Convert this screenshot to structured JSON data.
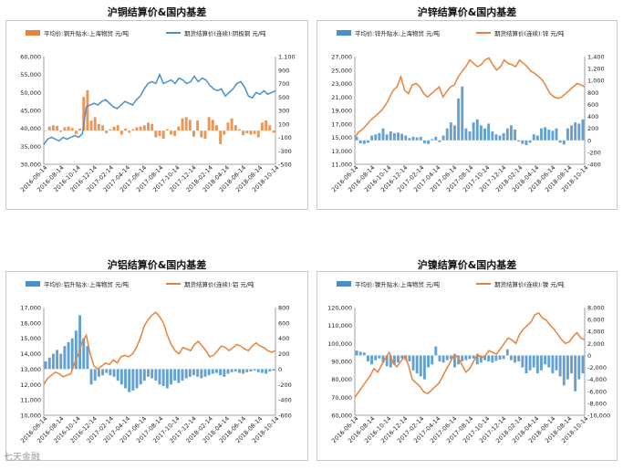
{
  "chart_data": [
    {
      "type": "bar+line",
      "title": "沪铜结算价&国内基差",
      "legend": [
        "平均价:铜升贴水:上海物贸 元/吨",
        "期货结算价(连续):阴极铜 元/吨"
      ],
      "x_ticks": [
        "2016-06-14",
        "2016-08-14",
        "2016-10-14",
        "2016-12-14",
        "2017-02-14",
        "2017-04-14",
        "2017-06-14",
        "2017-08-14",
        "2017-10-14",
        "2017-12-14",
        "2018-02-14",
        "2018-04-14",
        "2018-06-14",
        "2018-08-14",
        "2018-10-14"
      ],
      "left_axis": {
        "ticks": [
          "30,000",
          "35,000",
          "40,000",
          "45,000",
          "50,000",
          "55,000",
          "60,000"
        ],
        "min": 30000,
        "max": 60000
      },
      "right_axis": {
        "ticks": [
          "-500",
          "-300",
          "-100",
          "100",
          "300",
          "500",
          "700",
          "900",
          "1,100"
        ],
        "min": -500,
        "max": 1100
      },
      "line": {
        "name": "期货结算价(连续):阴极铜 元/吨",
        "color": "#4a90c8",
        "axis": "left",
        "values": [
          35500,
          37000,
          37500,
          37000,
          36500,
          37500,
          37000,
          37500,
          38000,
          37500,
          38500,
          46000,
          46500,
          47000,
          46500,
          47500,
          48000,
          47000,
          46000,
          45500,
          46500,
          47500,
          47000,
          46500,
          48000,
          49000,
          51000,
          52500,
          53000,
          52500,
          55000,
          52500,
          53000,
          53500,
          52500,
          54000,
          53500,
          52500,
          53000,
          54500,
          53000,
          54000,
          53500,
          52000,
          51000,
          50500,
          51000,
          49000,
          50000,
          51000,
          52500,
          53000,
          51500,
          49000,
          48500,
          50000,
          49500,
          50500,
          49500,
          50000,
          50500
        ]
      },
      "bars": {
        "name": "平均价:铜升贴水:上海物贸 元/吨",
        "color": "#e8823a",
        "axis": "right",
        "values": [
          0,
          60,
          80,
          70,
          -20,
          50,
          60,
          40,
          -50,
          30,
          500,
          600,
          150,
          200,
          100,
          80,
          -40,
          20,
          60,
          80,
          -60,
          30,
          -30,
          20,
          50,
          60,
          80,
          120,
          100,
          -100,
          -80,
          -120,
          20,
          -60,
          -80,
          60,
          180,
          200,
          160,
          -90,
          150,
          -100,
          -120,
          200,
          160,
          80,
          -200,
          -60,
          120,
          180,
          80,
          20,
          -70,
          -40,
          -60,
          -50,
          -100,
          120,
          150,
          80,
          -30
        ]
      }
    },
    {
      "type": "bar+line",
      "title": "沪锌结算价&国内基差",
      "legend": [
        "平均价:锌升贴水:上海物贸 元/吨",
        "期货结算价(连续):锌 元/吨"
      ],
      "x_ticks": [
        "2016-06-14",
        "2016-08-14",
        "2016-10-14",
        "2016-12-14",
        "2017-02-14",
        "2017-04-14",
        "2017-06-14",
        "2017-08-14",
        "2017-10-14",
        "2017-12-14",
        "2018-02-14",
        "2018-04-14",
        "2018-06-14",
        "2018-08-14",
        "2018-10-14"
      ],
      "left_axis": {
        "ticks": [
          "11,000",
          "13,000",
          "15,000",
          "17,000",
          "19,000",
          "21,000",
          "23,000",
          "25,000",
          "27,000"
        ],
        "min": 11000,
        "max": 27000
      },
      "right_axis": {
        "ticks": [
          "-400",
          "-200",
          "0",
          "200",
          "400",
          "600",
          "800",
          "1,000",
          "1,200",
          "1,400"
        ],
        "min": -400,
        "max": 1400
      },
      "line": {
        "name": "期货结算价(连续):锌 元/吨",
        "color": "#e8823a",
        "axis": "left",
        "values": [
          15000,
          15800,
          16200,
          16800,
          17500,
          18000,
          18500,
          19000,
          19800,
          20800,
          22000,
          22500,
          24000,
          22000,
          21500,
          22800,
          23000,
          22500,
          21500,
          21000,
          21500,
          22000,
          22500,
          21000,
          21800,
          22500,
          22800,
          24000,
          24800,
          25500,
          26500,
          26000,
          25500,
          25800,
          26500,
          26800,
          25800,
          25000,
          25500,
          26500,
          26000,
          25800,
          25500,
          26500,
          26000,
          25500,
          24800,
          24500,
          24000,
          23500,
          22500,
          21500,
          21000,
          20800,
          21000,
          21500,
          22000,
          22500,
          23000,
          22800,
          22500
        ]
      },
      "bars": {
        "name": "平均价:锌升贴水:上海物贸 元/吨",
        "color": "#4a90c8",
        "axis": "right",
        "values": [
          60,
          -50,
          -60,
          -40,
          80,
          100,
          120,
          200,
          100,
          150,
          120,
          130,
          110,
          80,
          40,
          60,
          50,
          60,
          -50,
          -60,
          20,
          60,
          -30,
          80,
          200,
          300,
          250,
          700,
          900,
          200,
          150,
          300,
          350,
          250,
          200,
          280,
          150,
          100,
          80,
          120,
          200,
          250,
          180,
          -20,
          -60,
          -80,
          -40,
          100,
          80,
          200,
          220,
          180,
          160,
          200,
          -40,
          -70,
          200,
          250,
          300,
          280,
          350
        ]
      }
    },
    {
      "type": "bar+line",
      "title": "沪铝结算价&国内基差",
      "legend": [
        "平均价:铝升贴水:上海物贸 元/吨",
        "期货结算价(连续):铝 元/吨"
      ],
      "x_ticks": [
        "2016-06-14",
        "2016-08-14",
        "2016-10-14",
        "2016-12-14",
        "2017-02-14",
        "2017-04-14",
        "2017-06-14",
        "2017-08-14",
        "2017-10-14",
        "2017-12-14",
        "2018-02-14",
        "2018-04-14",
        "2018-06-14",
        "2018-08-14",
        "2018-10-14"
      ],
      "left_axis": {
        "ticks": [
          "10,000",
          "11,000",
          "12,000",
          "13,000",
          "14,000",
          "15,000",
          "16,000",
          "17,000"
        ],
        "min": 10000,
        "max": 17000
      },
      "right_axis": {
        "ticks": [
          "-600",
          "-400",
          "-200",
          "0",
          "200",
          "400",
          "600",
          "800"
        ],
        "min": -600,
        "max": 800
      },
      "line": {
        "name": "期货结算价(连续):铝 元/吨",
        "color": "#e8823a",
        "axis": "left",
        "values": [
          12000,
          12400,
          12600,
          12800,
          12700,
          12500,
          12600,
          12700,
          13400,
          14000,
          14800,
          15200,
          14000,
          13200,
          13000,
          13200,
          13400,
          13300,
          13600,
          13400,
          13800,
          13900,
          13800,
          14000,
          14400,
          15000,
          15800,
          16200,
          16500,
          16700,
          16400,
          16000,
          15200,
          14600,
          14200,
          14000,
          14400,
          14300,
          14200,
          14600,
          14800,
          14500,
          14200,
          13800,
          13900,
          14200,
          14500,
          14400,
          14200,
          14400,
          14600,
          14500,
          14300,
          14200,
          14500,
          14700,
          14500,
          14400,
          14200,
          14100,
          14200
        ]
      },
      "bars": {
        "name": "平均价:铝升贴水:上海物贸 元/吨",
        "color": "#4a90c8",
        "axis": "right",
        "values": [
          100,
          150,
          200,
          250,
          200,
          300,
          350,
          400,
          500,
          700,
          400,
          300,
          -200,
          -150,
          -100,
          -80,
          -50,
          -80,
          -100,
          -150,
          -200,
          -250,
          -300,
          -280,
          -250,
          -200,
          -150,
          -100,
          -120,
          -150,
          -200,
          -220,
          -250,
          -200,
          -150,
          -180,
          -150,
          -120,
          -100,
          -80,
          -100,
          -120,
          -100,
          -80,
          -60,
          -50,
          -80,
          -100,
          -60,
          -40,
          -30,
          -50,
          -60,
          -40,
          -30,
          -20,
          -40,
          -50,
          -60,
          -30,
          -20
        ]
      }
    },
    {
      "type": "bar+line",
      "title": "沪镍结算价&国内基差",
      "legend": [
        "平均价:镍升贴水:上海物贸 元/吨",
        "期货结算价(连续):镍 元/吨"
      ],
      "x_ticks": [
        "2016-06-14",
        "2016-08-14",
        "2016-10-14",
        "2016-12-14",
        "2017-02-14",
        "2017-04-14",
        "2017-06-14",
        "2017-08-14",
        "2017-10-14",
        "2017-12-14",
        "2018-02-14",
        "2018-04-14",
        "2018-06-14",
        "2018-08-14",
        "2018-10-14"
      ],
      "left_axis": {
        "ticks": [
          "60,000",
          "70,000",
          "80,000",
          "90,000",
          "100,000",
          "110,000",
          "120,000"
        ],
        "min": 60000,
        "max": 120000
      },
      "right_axis": {
        "ticks": [
          "-10,000",
          "-8,000",
          "-6,000",
          "-4,000",
          "-2,000",
          "0",
          "2,000",
          "4,000",
          "6,000",
          "8,000"
        ],
        "min": -10000,
        "max": 8000
      },
      "line": {
        "name": "期货结算价(连续):镍 元/吨",
        "color": "#e8823a",
        "axis": "left",
        "values": [
          70000,
          73000,
          76000,
          79000,
          82000,
          86000,
          84000,
          88000,
          92000,
          95000,
          89000,
          87000,
          90000,
          93000,
          88000,
          80000,
          78000,
          76000,
          73000,
          72000,
          74000,
          76000,
          78000,
          82000,
          86000,
          90000,
          94000,
          92000,
          88000,
          84000,
          86000,
          90000,
          94000,
          92000,
          93000,
          96000,
          95000,
          94000,
          97000,
          100000,
          103000,
          102000,
          100000,
          105000,
          108000,
          110000,
          112000,
          116000,
          117000,
          114000,
          113000,
          110000,
          108000,
          105000,
          102000,
          100000,
          101000,
          104000,
          106000,
          103000,
          102000
        ]
      },
      "bars": {
        "name": "平均价:镍升贴水:上海物贸 元/吨",
        "color": "#4a90c8",
        "axis": "right",
        "values": [
          800,
          600,
          500,
          -1000,
          -1500,
          -800,
          -500,
          -1200,
          -1800,
          -2000,
          -1500,
          -1200,
          -500,
          -800,
          -1000,
          -2500,
          -3000,
          -3500,
          -4000,
          -2000,
          -1500,
          1500,
          -1000,
          -1200,
          -800,
          -600,
          -2000,
          -1500,
          -1000,
          -800,
          -600,
          -500,
          -1500,
          -1200,
          -800,
          -1000,
          -1200,
          -900,
          -700,
          -600,
          1000,
          -800,
          -1200,
          -1000,
          -2000,
          -3000,
          -2500,
          -2000,
          -3000,
          -2500,
          -1500,
          -2000,
          -3000,
          -2500,
          -3500,
          -5000,
          -4000,
          -3000,
          -6000,
          -4000,
          -3000
        ]
      }
    }
  ],
  "watermark": "七天金融"
}
